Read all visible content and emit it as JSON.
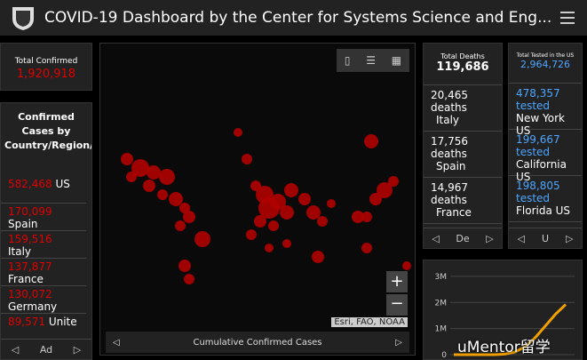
{
  "header": {
    "title": "COVID-19 Dashboard by the Center for Systems Science and Eng..."
  },
  "total_confirmed": {
    "label": "Total Confirmed",
    "value": "1,920,918"
  },
  "confirmed_list": {
    "title": "Confirmed Cases by Country/Region/Sovereignty",
    "items": [
      {
        "count": "582,468",
        "name": "US"
      },
      {
        "count": "170,099",
        "name": "Spain"
      },
      {
        "count": "159,516",
        "name": "Italy"
      },
      {
        "count": "137,877",
        "name": "France"
      },
      {
        "count": "130,072",
        "name": "Germany"
      },
      {
        "count": "89,571",
        "name": "Unite"
      }
    ],
    "tab": "Ad"
  },
  "map": {
    "attribution": "Esri, FAO, NOAA",
    "caption": "Cumulative Confirmed Cases"
  },
  "deaths": {
    "label": "Total Deaths",
    "value": "119,686",
    "items": [
      {
        "count": "20,465",
        "unit": "deaths",
        "name": "Italy"
      },
      {
        "count": "17,756",
        "unit": "deaths",
        "name": "Spain"
      },
      {
        "count": "14,967",
        "unit": "deaths",
        "name": "France"
      }
    ],
    "tab": "De"
  },
  "tested": {
    "label": "Total Tested in the US",
    "value": "2,964,726",
    "items": [
      {
        "count": "478,357",
        "unit": "tested",
        "name": "New York US"
      },
      {
        "count": "199,667",
        "unit": "tested",
        "name": "California US"
      },
      {
        "count": "198,805",
        "unit": "tested",
        "name": "Florida US"
      }
    ],
    "tab": "U"
  },
  "chart": {
    "type": "line",
    "ylim": [
      0,
      3200000
    ],
    "yticks": [
      {
        "value": 3000000,
        "label": "3M"
      },
      {
        "value": 2000000,
        "label": "2M"
      },
      {
        "value": 1000000,
        "label": "1M"
      },
      0
    ],
    "values": [
      0,
      0,
      0,
      0,
      0,
      20000,
      100000,
      300000,
      650000,
      1100000,
      1550000,
      1920918
    ],
    "color": "#f0a000"
  },
  "watermark": "uMentor留学"
}
